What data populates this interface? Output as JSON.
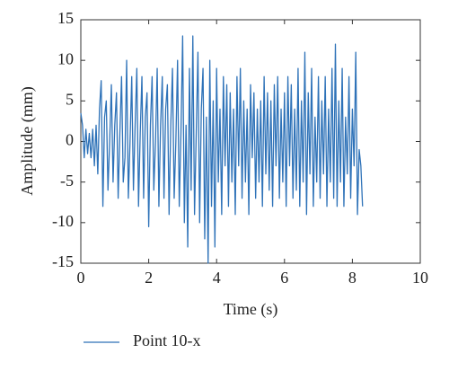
{
  "chart_data": {
    "type": "line",
    "xlabel": "Time (s)",
    "ylabel": "Amplitude (mm)",
    "xlim": [
      0,
      10
    ],
    "xticks": [
      0,
      2,
      4,
      6,
      8,
      10
    ],
    "ylim": [
      -15,
      15
    ],
    "yticks": [
      -15,
      -10,
      -5,
      0,
      5,
      10,
      15
    ],
    "grid": false,
    "legend": "bottom-left",
    "x": [
      0,
      0.05,
      0.1,
      0.15,
      0.2,
      0.25,
      0.3,
      0.35,
      0.4,
      0.45,
      0.5,
      0.55,
      0.6,
      0.65,
      0.7,
      0.75,
      0.8,
      0.85,
      0.9,
      0.95,
      1,
      1.05,
      1.1,
      1.15,
      1.2,
      1.25,
      1.3,
      1.35,
      1.4,
      1.45,
      1.5,
      1.55,
      1.6,
      1.65,
      1.7,
      1.75,
      1.8,
      1.85,
      1.9,
      1.95,
      2,
      2.05,
      2.1,
      2.15,
      2.2,
      2.25,
      2.3,
      2.35,
      2.4,
      2.45,
      2.5,
      2.55,
      2.6,
      2.65,
      2.7,
      2.75,
      2.8,
      2.85,
      2.9,
      2.95,
      3,
      3.05,
      3.1,
      3.15,
      3.2,
      3.25,
      3.3,
      3.35,
      3.4,
      3.45,
      3.5,
      3.55,
      3.6,
      3.65,
      3.7,
      3.75,
      3.8,
      3.85,
      3.9,
      3.95,
      4,
      4.05,
      4.1,
      4.15,
      4.2,
      4.25,
      4.3,
      4.35,
      4.4,
      4.45,
      4.5,
      4.55,
      4.6,
      4.65,
      4.7,
      4.75,
      4.8,
      4.85,
      4.9,
      4.95,
      5,
      5.05,
      5.1,
      5.15,
      5.2,
      5.25,
      5.3,
      5.35,
      5.4,
      5.45,
      5.5,
      5.55,
      5.6,
      5.65,
      5.7,
      5.75,
      5.8,
      5.85,
      5.9,
      5.95,
      6,
      6.05,
      6.1,
      6.15,
      6.2,
      6.25,
      6.3,
      6.35,
      6.4,
      6.45,
      6.5,
      6.55,
      6.6,
      6.65,
      6.7,
      6.75,
      6.8,
      6.85,
      6.9,
      6.95,
      7,
      7.05,
      7.1,
      7.15,
      7.2,
      7.25,
      7.3,
      7.35,
      7.4,
      7.45,
      7.5,
      7.55,
      7.6,
      7.65,
      7.7,
      7.75,
      7.8,
      7.85,
      7.9,
      7.95,
      8,
      8.05,
      8.1,
      8.15,
      8.2,
      8.25,
      8.3
    ],
    "series": [
      {
        "name": "Point 10-x",
        "color": "#2e72b8",
        "values": [
          3.5,
          2,
          -2,
          1.5,
          -1.5,
          1,
          -2,
          1.5,
          -3,
          2,
          -4,
          4,
          7.5,
          -8,
          3,
          5,
          -6,
          0,
          7,
          -5,
          2,
          6,
          -7,
          1,
          8,
          -5,
          -2,
          10,
          -7,
          0,
          8,
          -6,
          2,
          9,
          -8,
          1,
          8,
          -7,
          3,
          6,
          -10.5,
          2,
          8,
          -6,
          0,
          9,
          -8,
          2,
          8,
          -7,
          4,
          7,
          -9,
          2,
          9,
          -7,
          0,
          10,
          -8,
          1,
          13,
          -10,
          2,
          -13,
          9,
          -6,
          13,
          -9,
          1,
          11,
          -10,
          4,
          9,
          -12,
          3,
          -15,
          10,
          -8,
          5,
          -13,
          9,
          -5,
          4,
          -9,
          8,
          -3,
          7,
          -8,
          6,
          -5,
          4,
          -9,
          8,
          -3,
          9,
          -7,
          5,
          -5,
          4,
          -9,
          7,
          -2,
          6,
          -7,
          4,
          -5,
          5,
          -8,
          8,
          -4,
          6,
          -6,
          5,
          -8,
          7,
          -3,
          8,
          -7,
          4,
          -5,
          6,
          -8,
          8,
          -3,
          7,
          -7,
          4,
          -6,
          9,
          -8,
          5,
          -5,
          11,
          -9,
          6,
          -4,
          9,
          -8,
          3,
          -5,
          8,
          -7,
          5,
          -4,
          8,
          -8,
          4,
          -5,
          9,
          -7,
          12,
          -8,
          5,
          -5,
          9,
          -8,
          3,
          -4,
          8,
          -7,
          4,
          -3,
          11,
          -9,
          -1,
          -3,
          -8
        ]
      }
    ]
  }
}
